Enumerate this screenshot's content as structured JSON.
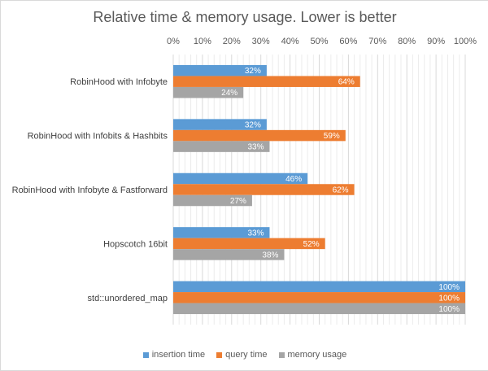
{
  "chart_data": {
    "type": "bar",
    "orientation": "horizontal",
    "title": "Relative time & memory usage. Lower is better",
    "categories": [
      "RobinHood with Infobyte",
      "RobinHood with Infobits & Hashbits",
      "RobinHood with Infobyte & Fastforward",
      "Hopscotch 16bit",
      "std::unordered_map"
    ],
    "series": [
      {
        "name": "insertion time",
        "color": "#5b9bd5",
        "values": [
          32,
          32,
          46,
          33,
          100
        ]
      },
      {
        "name": "query time",
        "color": "#ed7d31",
        "values": [
          64,
          59,
          62,
          52,
          100
        ]
      },
      {
        "name": "memory usage",
        "color": "#a5a5a5",
        "values": [
          24,
          33,
          27,
          38,
          100
        ]
      }
    ],
    "xlim": [
      0,
      100
    ],
    "x_ticks": [
      "0%",
      "10%",
      "20%",
      "30%",
      "40%",
      "50%",
      "60%",
      "70%",
      "80%",
      "90%",
      "100%"
    ],
    "value_suffix": "%",
    "legend_position": "bottom",
    "grid": true
  }
}
